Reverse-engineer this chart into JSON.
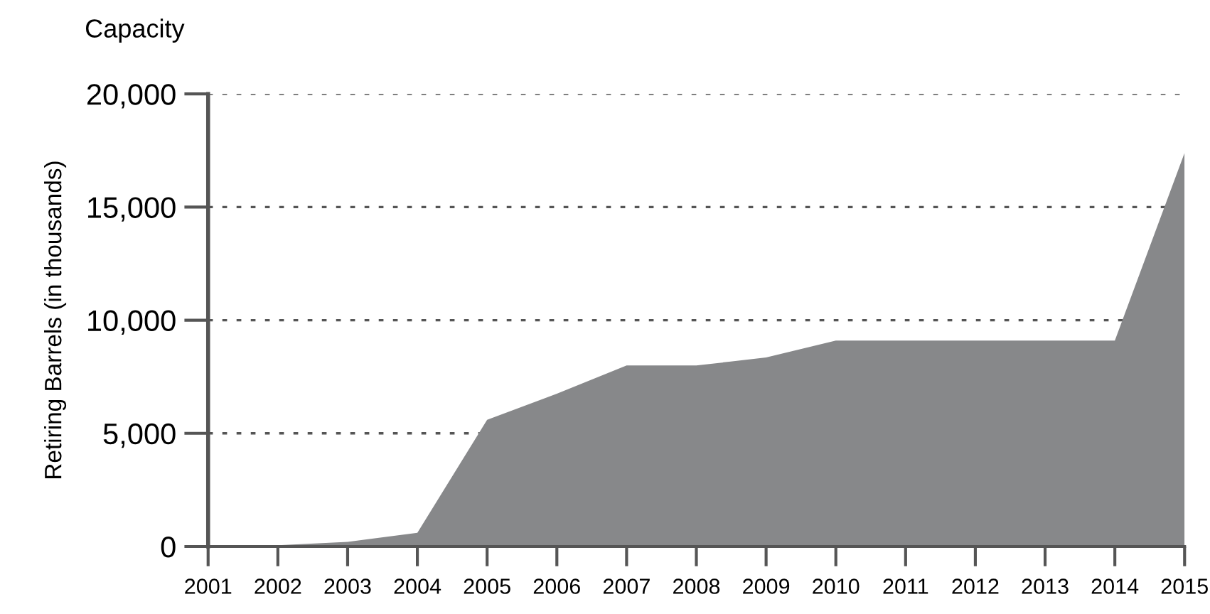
{
  "chart_data": {
    "type": "area",
    "title": "Capacity",
    "ylabel": "Retiring Barrels (in thousands)",
    "categories": [
      "2001",
      "2002",
      "2003",
      "2004",
      "2005",
      "2006",
      "2007",
      "2008",
      "2009",
      "2010",
      "2011",
      "2012",
      "2013",
      "2014",
      "2015"
    ],
    "series": [
      {
        "color": "#87888a",
        "values": [
          0,
          50,
          200,
          600,
          5600,
          6750,
          8000,
          8000,
          8350,
          9100,
          9100,
          9100,
          9100,
          9100,
          17400
        ]
      }
    ],
    "ylim": [
      0,
      20000
    ],
    "yticks": [
      {
        "value": 0,
        "label": "0"
      },
      {
        "value": 5000,
        "label": "5,000"
      },
      {
        "value": 10000,
        "label": "10,000"
      },
      {
        "value": 15000,
        "label": "15,000"
      },
      {
        "value": 20000,
        "label": "20,000"
      }
    ],
    "grid": "y"
  }
}
